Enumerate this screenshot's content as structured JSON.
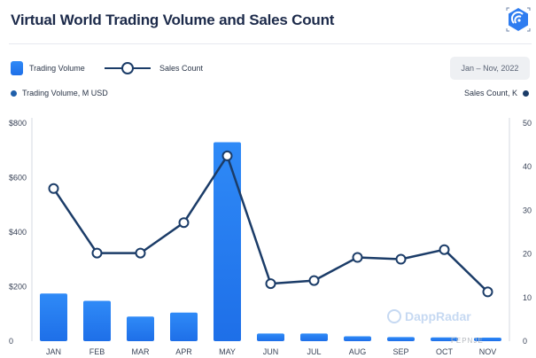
{
  "header": {
    "title": "Virtual World Trading Volume and Sales Count",
    "date_range": "Jan – Nov, 2022"
  },
  "legend": {
    "bar_label": "Trading Volume",
    "line_label": "Sales Count"
  },
  "axes": {
    "left_title": "Trading Volume, M USD",
    "right_title": "Sales Count, K"
  },
  "watermark": "DappRadar",
  "corner_mark": "FEPNJE",
  "colors": {
    "bar_top": "#2f8af7",
    "bar_bottom": "#1e6fe8",
    "line": "#1b3c68",
    "title": "#1c2a4a",
    "grid": "#e6e9ef"
  },
  "chart_data": {
    "type": "bar",
    "categories": [
      "JAN",
      "FEB",
      "MAR",
      "APR",
      "MAY",
      "JUN",
      "JUL",
      "AUG",
      "SEP",
      "OCT",
      "NOV"
    ],
    "series": [
      {
        "name": "Trading Volume",
        "type": "bar",
        "axis": "left",
        "unit": "M USD",
        "values": [
          175,
          148,
          90,
          105,
          730,
          28,
          28,
          18,
          15,
          14,
          13
        ]
      },
      {
        "name": "Sales Count",
        "type": "line",
        "axis": "right",
        "unit": "K",
        "values": [
          35,
          20.2,
          20.2,
          27.2,
          42.5,
          13.2,
          13.9,
          19.2,
          18.8,
          21,
          11.3
        ]
      }
    ],
    "y_left": {
      "range": [
        0,
        800
      ],
      "ticks": [
        0,
        200,
        400,
        600,
        800
      ],
      "tick_labels": [
        "0",
        "$200",
        "$400",
        "$600",
        "$800"
      ]
    },
    "y_right": {
      "range": [
        0,
        50
      ],
      "ticks": [
        0,
        10,
        20,
        30,
        40,
        50
      ],
      "tick_labels": [
        "0",
        "10",
        "20",
        "30",
        "40",
        "50"
      ]
    },
    "title": "Virtual World Trading Volume and Sales Count",
    "xlabel": "",
    "ylabel": "Trading Volume, M USD",
    "y2label": "Sales Count, K",
    "grid": false,
    "legend_position": "top-left"
  }
}
